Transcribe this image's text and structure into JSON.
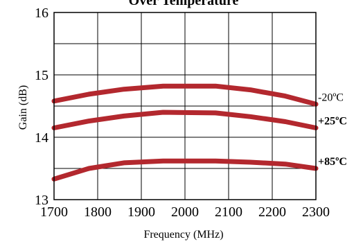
{
  "chart_data": {
    "type": "line",
    "title": "Over Temperature",
    "xlabel": "Frequency (MHz)",
    "ylabel": "Gain (dB)",
    "xlim": [
      1700,
      2300
    ],
    "ylim": [
      13,
      16
    ],
    "x_ticks": [
      "1700",
      "1800",
      "1900",
      "2000",
      "2100",
      "2200",
      "2300"
    ],
    "y_ticks": [
      "13",
      "14",
      "15",
      "16"
    ],
    "grid": true,
    "line_color": "#b3282e",
    "series": [
      {
        "name": "-20ºC",
        "x": [
          1700,
          1780,
          1860,
          1950,
          2070,
          2150,
          2230,
          2300
        ],
        "y": [
          14.58,
          14.69,
          14.77,
          14.82,
          14.82,
          14.76,
          14.66,
          14.53
        ]
      },
      {
        "name": "+25ºC",
        "x": [
          1700,
          1780,
          1860,
          1950,
          2070,
          2150,
          2230,
          2300
        ],
        "y": [
          14.15,
          14.26,
          14.34,
          14.4,
          14.39,
          14.33,
          14.25,
          14.15
        ]
      },
      {
        "name": "+85ºC",
        "x": [
          1700,
          1780,
          1860,
          1950,
          2070,
          2150,
          2230,
          2300
        ],
        "y": [
          13.33,
          13.5,
          13.59,
          13.62,
          13.62,
          13.6,
          13.57,
          13.5
        ]
      }
    ]
  }
}
